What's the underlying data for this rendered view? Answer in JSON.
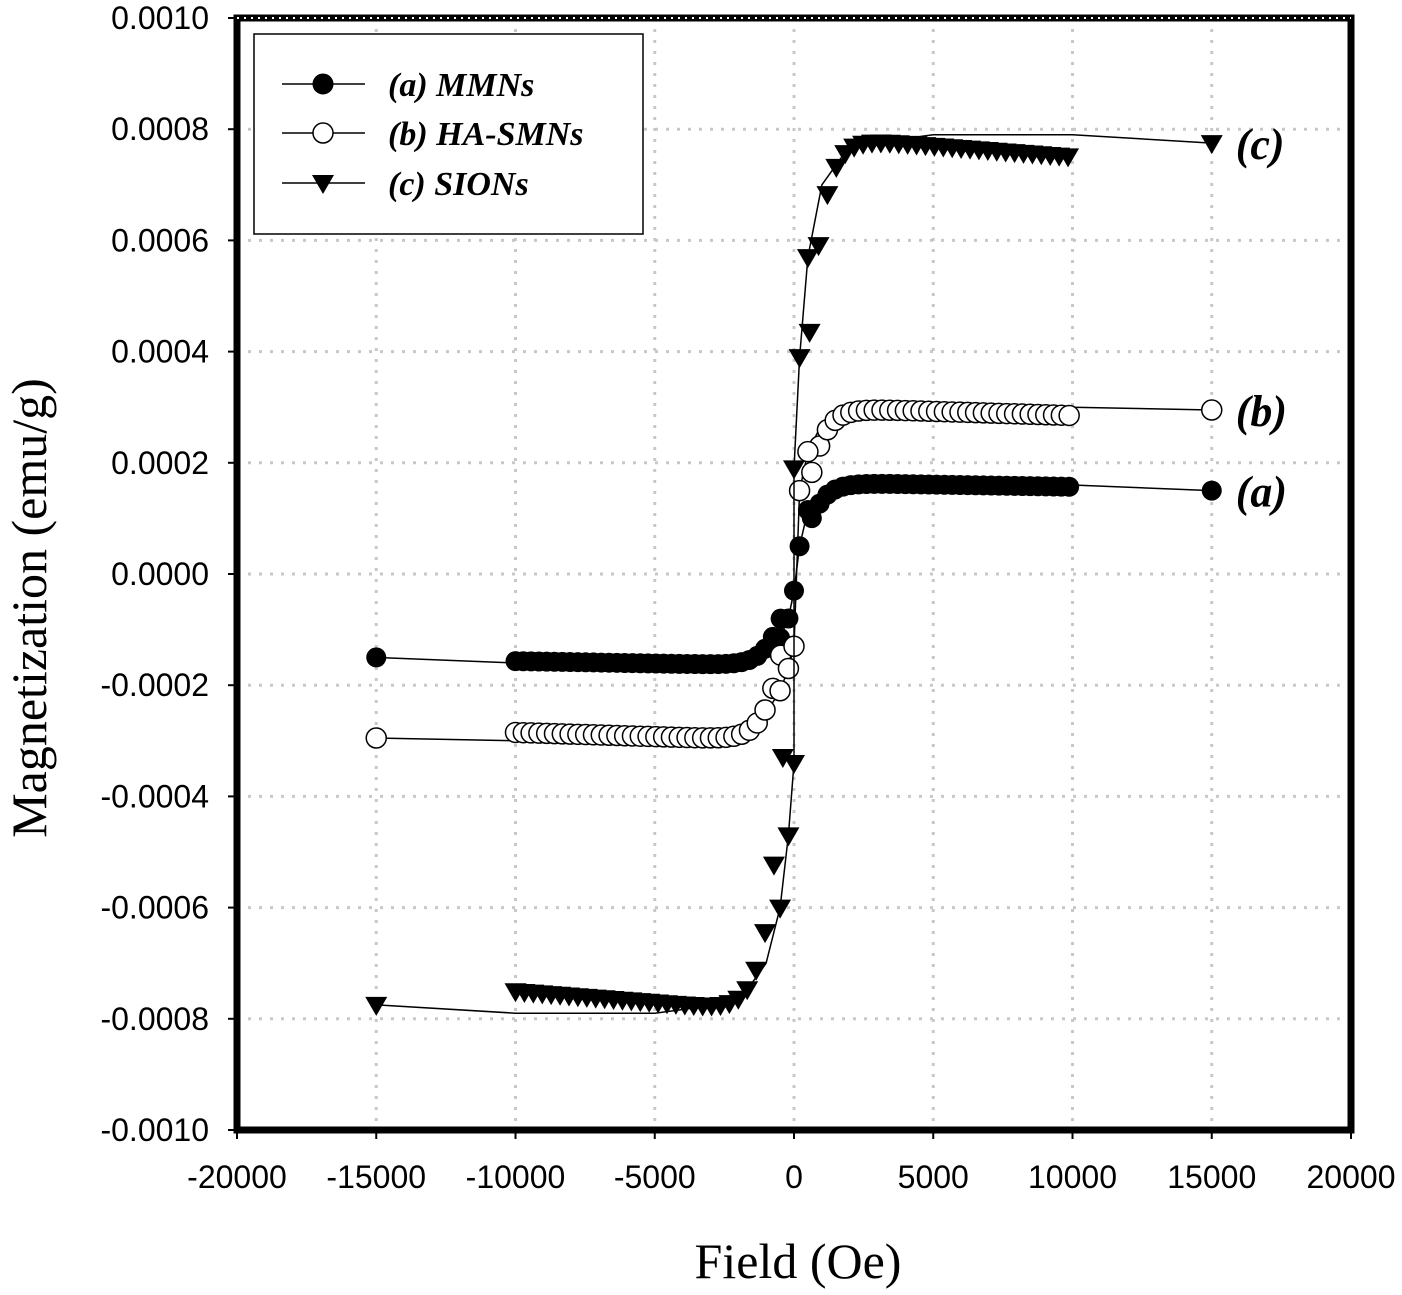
{
  "chart_data": {
    "type": "scatter",
    "xlabel": "Field (Oe)",
    "ylabel": "Magnetization (emu/g)",
    "xlim": [
      -20000,
      20000
    ],
    "ylim": [
      -0.001,
      0.001
    ],
    "xticks": [
      "-20000",
      "-15000",
      "-10000",
      "-5000",
      "0",
      "5000",
      "10000",
      "15000",
      "20000"
    ],
    "yticks": [
      "0.0010",
      "0.0008",
      "0.0006",
      "0.0004",
      "0.0002",
      "0.0000",
      "-0.0002",
      "-0.0004",
      "-0.0006",
      "-0.0008",
      "-0.0010"
    ],
    "grid": true,
    "legend_placement": "top-left",
    "series": [
      {
        "name": "(a) MMNs",
        "label": "(a)",
        "marker": "filled-circle",
        "Ms": 0.000165,
        "points": [
          [
            -15000,
            -0.00015
          ],
          [
            -10000,
            -0.00016
          ],
          [
            -5000,
            -0.000165
          ],
          [
            -2000,
            -0.00016
          ],
          [
            -1000,
            -0.00014
          ],
          [
            -500,
            -0.000115
          ],
          [
            -200,
            -8e-05
          ],
          [
            0,
            -3e-05
          ],
          [
            200,
            5e-05
          ],
          [
            500,
            0.000115
          ],
          [
            1000,
            0.00014
          ],
          [
            2000,
            0.00016
          ],
          [
            5000,
            0.000165
          ],
          [
            10000,
            0.00016
          ],
          [
            15000,
            0.00015
          ]
        ]
      },
      {
        "name": "(b) HA-SMNs",
        "label": "(b)",
        "marker": "open-circle",
        "Ms": 0.0003,
        "points": [
          [
            -15000,
            -0.000295
          ],
          [
            -10000,
            -0.0003
          ],
          [
            -5000,
            -0.0003
          ],
          [
            -2000,
            -0.000285
          ],
          [
            -1000,
            -0.00025
          ],
          [
            -500,
            -0.00021
          ],
          [
            -200,
            -0.00017
          ],
          [
            0,
            -0.00013
          ],
          [
            200,
            0.00015
          ],
          [
            500,
            0.00022
          ],
          [
            1000,
            0.00027
          ],
          [
            2000,
            0.000295
          ],
          [
            5000,
            0.0003
          ],
          [
            10000,
            0.0003
          ],
          [
            15000,
            0.000295
          ]
        ]
      },
      {
        "name": "(c) SIONs",
        "label": "(c)",
        "marker": "filled-triangle-down",
        "Ms": 0.00079,
        "points": [
          [
            -15000,
            -0.000775
          ],
          [
            -10000,
            -0.00079
          ],
          [
            -5000,
            -0.00079
          ],
          [
            -2000,
            -0.00077
          ],
          [
            -1000,
            -0.0007
          ],
          [
            -500,
            -0.0006
          ],
          [
            -200,
            -0.00047
          ],
          [
            0,
            -0.00034
          ],
          [
            0,
            0.00019
          ],
          [
            200,
            0.00039
          ],
          [
            500,
            0.00057
          ],
          [
            1000,
            0.0007
          ],
          [
            2000,
            0.00077
          ],
          [
            5000,
            0.00079
          ],
          [
            10000,
            0.00079
          ],
          [
            15000,
            0.000775
          ]
        ]
      }
    ]
  }
}
